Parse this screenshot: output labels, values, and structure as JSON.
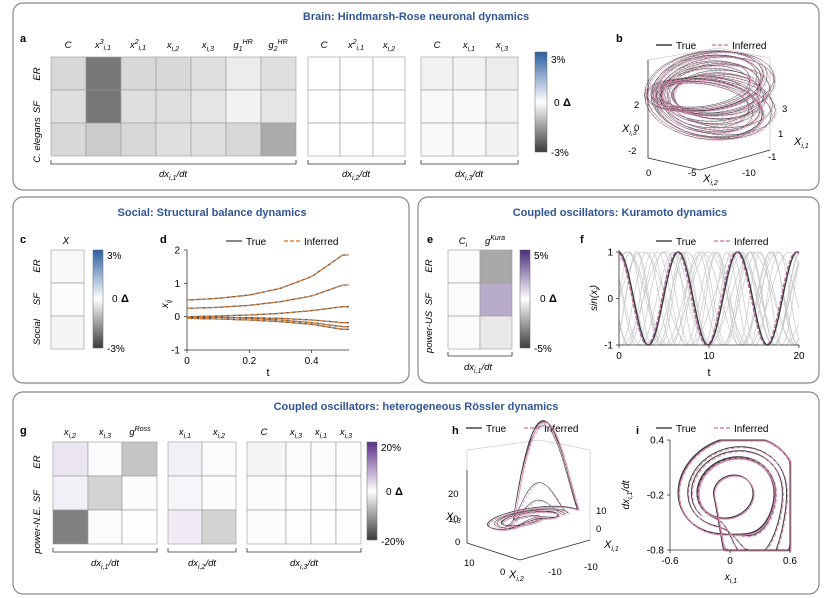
{
  "panel_brain": {
    "title": "Brain: Hindmarsh-Rose neuronal dynamics",
    "label_a": "a",
    "label_b": "b",
    "rows": [
      "ER",
      "SF",
      "C. elegans"
    ],
    "groups": [
      {
        "cols": [
          "C",
          "x³i,1",
          "x²i,1",
          "xi,2",
          "xi,3",
          "g1HR",
          "g2HR"
        ],
        "label": "dxi,1/dt"
      },
      {
        "cols": [
          "C",
          "x²i,1",
          "xi,2"
        ],
        "label": "dxi,2/dt"
      },
      {
        "cols": [
          "C",
          "xi,1",
          "xi,3"
        ],
        "label": "dxi,3/dt"
      }
    ],
    "colorbar": {
      "max": "3%",
      "mid": "0",
      "min": "-3%",
      "symbol": "Δ"
    },
    "b_legend": [
      "True",
      "Inferred"
    ],
    "b_axes": {
      "x_label": "Xi,2",
      "x_ticks": [
        "0",
        "-5",
        "-10"
      ],
      "y_label": "Xi,1",
      "y_ticks": [
        "3",
        "1",
        "-1"
      ],
      "z_label": "Xi,3",
      "z_ticks": [
        "2",
        "0",
        "-2"
      ]
    }
  },
  "panel_social": {
    "title": "Social: Structural balance dynamics",
    "label_c": "c",
    "label_d": "d",
    "col": "X",
    "rows": [
      "ER",
      "SF",
      "Social"
    ],
    "colorbar": {
      "max": "3%",
      "mid": "0",
      "min": "-3%",
      "symbol": "Δ"
    },
    "legend": [
      "True",
      "Inferred"
    ]
  },
  "panel_kuramoto": {
    "title": "Coupled oscillators: Kuramoto dynamics",
    "label_e": "e",
    "label_f": "f",
    "cols": [
      "Ci",
      "gKura"
    ],
    "rows": [
      "ER",
      "SF",
      "power-US"
    ],
    "group_label": "dxi,1/dt",
    "colorbar": {
      "max": "5%",
      "mid": "0",
      "min": "-5%",
      "symbol": "Δ"
    },
    "legend": [
      "True",
      "Inferred"
    ]
  },
  "panel_rossler": {
    "title": "Coupled oscillators:  heterogeneous Rössler dynamics",
    "label_g": "g",
    "label_h": "h",
    "label_i": "i",
    "rows": [
      "ER",
      "SF",
      "power-N.E."
    ],
    "groups": [
      {
        "cols": [
          "xi,2",
          "xi,3",
          "gRoss"
        ],
        "label": "dxi,1/dt"
      },
      {
        "cols": [
          "xi,1",
          "xi,2"
        ],
        "label": "dxi,2/dt"
      },
      {
        "cols": [
          "C",
          "xi,3",
          "xi,1",
          "xi,3"
        ],
        "label": "dxi,3/dt"
      }
    ],
    "colorbar": {
      "max": "20%",
      "mid": "0",
      "min": "-20%",
      "symbol": "Δ"
    },
    "h_legend": [
      "True",
      "Inferred"
    ],
    "h_axes": {
      "x_label": "Xi,2",
      "x_ticks": [
        "10",
        "0",
        "-10"
      ],
      "y_label": "Xi,1",
      "y_ticks": [
        "10",
        "0",
        "-10"
      ],
      "z_label": "Xi,3",
      "z_ticks": [
        "20",
        "10",
        "0"
      ]
    },
    "i_legend": [
      "True",
      "Inferred"
    ]
  },
  "colors": {
    "border": "#888888",
    "title": "#2f5597",
    "true_line": "#3a3a3a",
    "inferred_line": "#d986b2",
    "d_inferred": "#e8873a",
    "f_bg": "#c8c8c8",
    "cbar_pos": "#2a5fa0",
    "cbar_neg": "#3c3c3c",
    "cbar_kura_pos": "#4a2d7a",
    "cbar_ross_pos": "#5a2d88"
  },
  "chart_data": [
    {
      "type": "heatmap",
      "title": "Brain: Hindmarsh-Rose neuronal dynamics",
      "rows": [
        "ER",
        "SF",
        "C. elegans"
      ],
      "columns": [
        "C",
        "x3 i,1",
        "x2 i,1",
        "x i,2",
        "x i,3",
        "g1 HR",
        "g2 HR",
        "C",
        "x2 i,1",
        "x i,2",
        "C",
        "x i,1",
        "x i,3"
      ],
      "values": [
        [
          -0.6,
          -2.1,
          -0.6,
          -0.6,
          -0.5,
          -0.3,
          -0.5,
          0.0,
          0.0,
          0.0,
          -0.2,
          -0.2,
          -0.3
        ],
        [
          -0.5,
          -2.1,
          -0.5,
          -0.5,
          -0.4,
          -0.2,
          -0.4,
          0.0,
          0.0,
          0.0,
          -0.1,
          -0.1,
          -0.2
        ],
        [
          -0.6,
          -0.8,
          -0.6,
          -0.5,
          -0.5,
          -0.6,
          -1.3,
          0.0,
          0.0,
          0.0,
          -0.1,
          -0.1,
          -0.2
        ]
      ],
      "zlim": [
        -3,
        3
      ]
    },
    {
      "type": "heatmap",
      "title": "Social: Structural balance dynamics",
      "rows": [
        "ER",
        "SF",
        "Social"
      ],
      "columns": [
        "X"
      ],
      "values": [
        [
          -0.1
        ],
        [
          -0.05
        ],
        [
          -0.15
        ]
      ],
      "zlim": [
        -3,
        3
      ]
    },
    {
      "type": "line",
      "xlabel": "t",
      "ylabel": "xij",
      "xlim": [
        0,
        0.52
      ],
      "ylim": [
        -1,
        2
      ],
      "x": [
        0,
        0.1,
        0.2,
        0.3,
        0.4,
        0.5
      ],
      "series": [
        {
          "name": "True",
          "y": [
            0.5,
            0.55,
            0.65,
            0.85,
            1.2,
            1.85
          ]
        },
        {
          "name": "True",
          "y": [
            0.25,
            0.28,
            0.34,
            0.45,
            0.62,
            0.95
          ]
        },
        {
          "name": "True",
          "y": [
            0.0,
            0.02,
            0.05,
            0.1,
            0.18,
            0.3
          ]
        },
        {
          "name": "True",
          "y": [
            -0.02,
            -0.02,
            -0.03,
            -0.05,
            -0.1,
            -0.18
          ]
        },
        {
          "name": "True",
          "y": [
            0.0,
            -0.02,
            -0.05,
            -0.1,
            -0.18,
            -0.3
          ]
        },
        {
          "name": "True",
          "y": [
            -0.05,
            -0.07,
            -0.1,
            -0.15,
            -0.23,
            -0.38
          ]
        }
      ]
    },
    {
      "type": "heatmap",
      "title": "Coupled oscillators: Kuramoto dynamics",
      "rows": [
        "ER",
        "SF",
        "power-US"
      ],
      "columns": [
        "Ci",
        "gKura"
      ],
      "values": [
        [
          -0.1,
          -2.2
        ],
        [
          0.1,
          2.0
        ],
        [
          -0.1,
          -0.6
        ]
      ],
      "zlim": [
        -5,
        5
      ]
    },
    {
      "type": "line",
      "xlabel": "t",
      "ylabel": "sin(xi)",
      "xlim": [
        0,
        20
      ],
      "ylim": [
        -1,
        1
      ],
      "series": [
        {
          "name": "True",
          "function": "sin",
          "omega": 0.95,
          "phase": 1.6
        },
        {
          "name": "Inferred",
          "function": "sin",
          "omega": 0.95,
          "phase": 1.75
        }
      ]
    },
    {
      "type": "heatmap",
      "title": "Coupled oscillators: heterogeneous Rössler dynamics",
      "rows": [
        "ER",
        "SF",
        "power-N.E."
      ],
      "columns": [
        "x i,2",
        "x i,3",
        "gRoss",
        "x i,1",
        "x i,2",
        "C",
        "x i,3",
        "x i,1",
        "x i,3"
      ],
      "values": [
        [
          2.5,
          0.5,
          -6.0,
          1.5,
          0.5,
          -1.0,
          0.3,
          0.3,
          0.3
        ],
        [
          1.5,
          -4.5,
          0.5,
          1.0,
          0.3,
          0.4,
          0.2,
          0.2,
          0.2
        ],
        [
          -13.0,
          0.5,
          0.2,
          2.0,
          -4.5,
          0.3,
          0.2,
          0.1,
          0.2
        ]
      ],
      "zlim": [
        -20,
        20
      ]
    },
    {
      "type": "line",
      "title": "",
      "xlabel": "xi,1",
      "ylabel": "dxi,1/dt",
      "xlim": [
        -0.6,
        0.6
      ],
      "ylim": [
        -0.8,
        0.4
      ],
      "series": [
        {
          "name": "True",
          "kind": "limit-cycle"
        },
        {
          "name": "Inferred",
          "kind": "limit-cycle"
        }
      ]
    }
  ]
}
